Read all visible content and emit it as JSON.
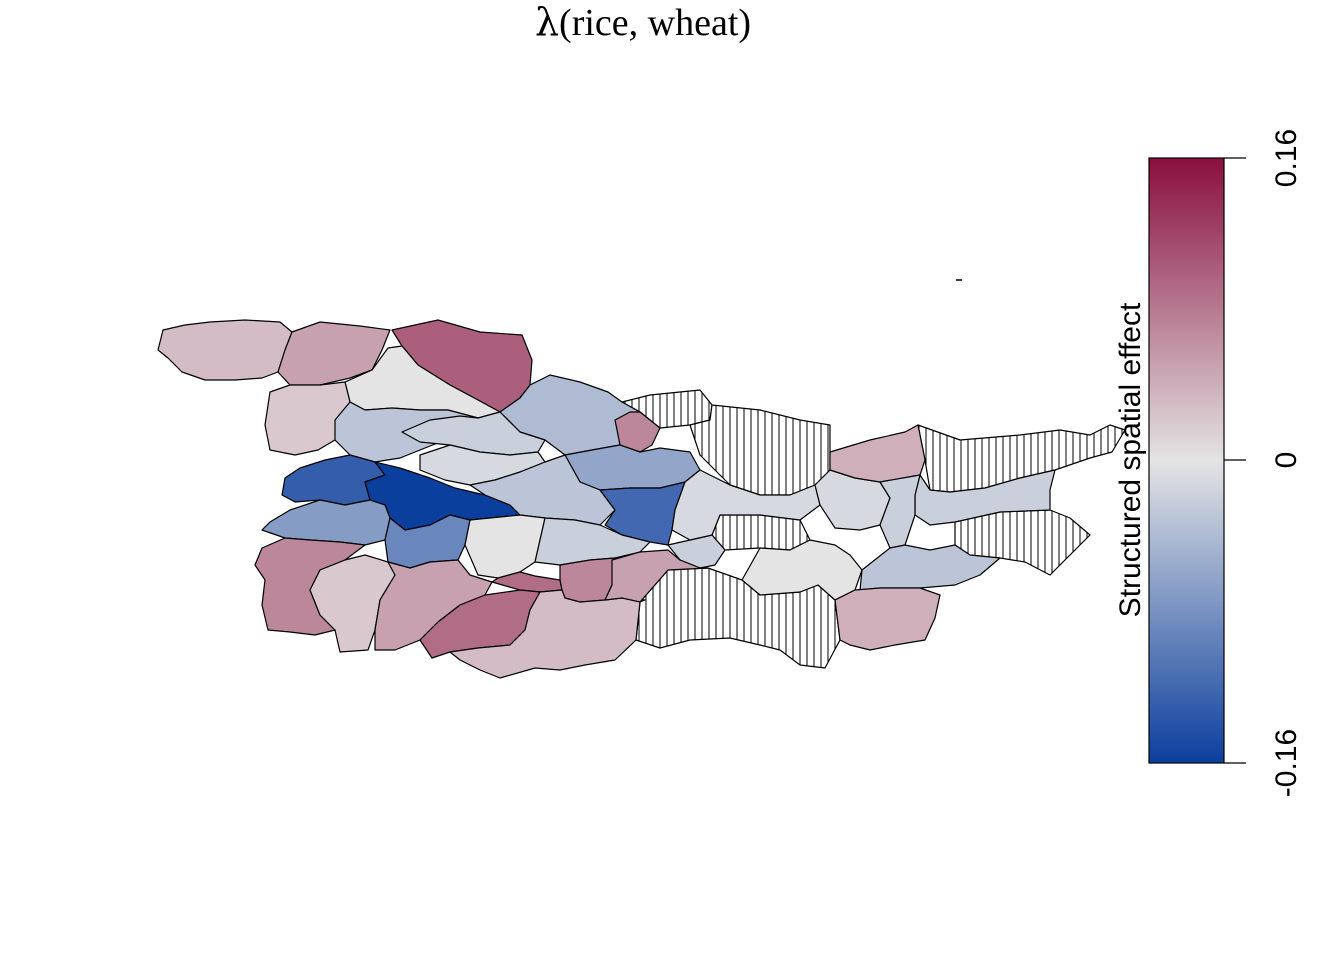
{
  "title": {
    "symbol": "λ",
    "text": "(rice, wheat)"
  },
  "legend": {
    "label": "Structured spatial effect",
    "ticks": [
      "0.16",
      "0",
      "-0.16"
    ],
    "range": [
      -0.16,
      0.16
    ],
    "colors": {
      "low": "#0b3f9e",
      "mid": "#e4e4e4",
      "high": "#8a0f3d"
    }
  },
  "map": {
    "missing_pattern": "vertical-hatch",
    "regions": [
      {
        "id": "R1",
        "value": 0.03
      },
      {
        "id": "R2",
        "value": 0.05
      },
      {
        "id": "R3",
        "value": 0.1
      },
      {
        "id": "R4",
        "value": 0.0
      },
      {
        "id": "R5",
        "value": -0.04
      },
      {
        "id": "R6",
        "value": 0.02
      },
      {
        "id": "R7",
        "value": -0.03
      },
      {
        "id": "R8",
        "value": 0.07
      },
      {
        "id": "R9",
        "value": -0.02
      },
      {
        "id": "R10",
        "value": -0.01
      },
      {
        "id": "R11",
        "value": -0.06
      },
      {
        "id": "R12",
        "value": -0.13
      },
      {
        "id": "R13",
        "value": -0.16
      },
      {
        "id": "R14",
        "value": -0.03
      },
      {
        "id": "R15",
        "value": -0.12
      },
      {
        "id": "R16",
        "value": -0.07
      },
      {
        "id": "R17",
        "value": -0.09
      },
      {
        "id": "R18",
        "value": 0.0
      },
      {
        "id": "R19",
        "value": -0.02
      },
      {
        "id": "R20",
        "value": -0.02
      },
      {
        "id": "R21",
        "value": 0.07
      },
      {
        "id": "R22",
        "value": 0.02
      },
      {
        "id": "R23",
        "value": 0.05
      },
      {
        "id": "R24",
        "value": 0.09
      },
      {
        "id": "R25",
        "value": 0.07
      },
      {
        "id": "R26",
        "value": 0.09
      },
      {
        "id": "R27",
        "value": 0.03
      },
      {
        "id": "R28",
        "value": 0.05
      },
      {
        "id": "R29",
        "value": -0.01
      },
      {
        "id": "R30",
        "value": -0.01
      },
      {
        "id": "R31",
        "value": 0.04
      },
      {
        "id": "R32",
        "value": -0.02
      },
      {
        "id": "R33",
        "value": -0.02
      },
      {
        "id": "R34",
        "value": 0.0
      },
      {
        "id": "R35",
        "value": -0.03
      },
      {
        "id": "R36",
        "value": 0.04
      },
      {
        "id": "R37",
        "value": null
      },
      {
        "id": "R38",
        "value": null
      },
      {
        "id": "R39",
        "value": null
      },
      {
        "id": "R40",
        "value": null
      },
      {
        "id": "R41",
        "value": null
      },
      {
        "id": "R42",
        "value": null
      }
    ]
  }
}
